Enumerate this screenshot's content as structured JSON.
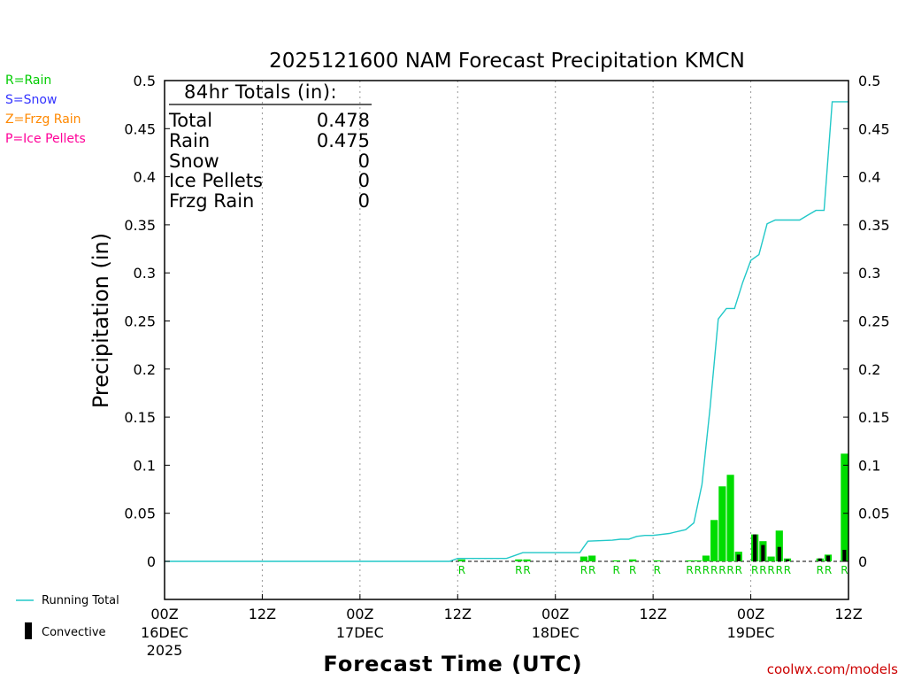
{
  "chart_data": {
    "type": "bar",
    "title": "2025121600 NAM Forecast Precipitation KMCN",
    "xlabel": "Forecast Time (UTC)",
    "ylabel": "Precipitation (in)",
    "credit": "coolwx.com/models",
    "ylim": [
      -0.04,
      0.5
    ],
    "xlim": [
      0,
      84
    ],
    "y_ticks": [
      "0",
      "0.05",
      "0.1",
      "0.15",
      "0.2",
      "0.25",
      "0.3",
      "0.35",
      "0.4",
      "0.45",
      "0.5"
    ],
    "y_tick_values": [
      0,
      0.05,
      0.1,
      0.15,
      0.2,
      0.25,
      0.3,
      0.35,
      0.4,
      0.45,
      0.5
    ],
    "x_ticks": [
      {
        "hour": 0,
        "line1": "00Z",
        "line2": "16DEC",
        "line3": "2025"
      },
      {
        "hour": 12,
        "line1": "12Z",
        "line2": "",
        "line3": ""
      },
      {
        "hour": 24,
        "line1": "00Z",
        "line2": "17DEC",
        "line3": ""
      },
      {
        "hour": 36,
        "line1": "12Z",
        "line2": "",
        "line3": ""
      },
      {
        "hour": 48,
        "line1": "00Z",
        "line2": "18DEC",
        "line3": ""
      },
      {
        "hour": 60,
        "line1": "12Z",
        "line2": "",
        "line3": ""
      },
      {
        "hour": 72,
        "line1": "00Z",
        "line2": "19DEC",
        "line3": ""
      },
      {
        "hour": 84,
        "line1": "12Z",
        "line2": "",
        "line3": ""
      }
    ],
    "totals_box": {
      "header": "84hr Totals (in):",
      "rows": [
        {
          "label": "Total",
          "value": "0.478"
        },
        {
          "label": "Rain",
          "value": "0.475"
        },
        {
          "label": "Snow",
          "value": "0"
        },
        {
          "label": "Ice Pellets",
          "value": "0"
        },
        {
          "label": "Frzg Rain",
          "value": "0"
        }
      ]
    },
    "ptype_legend": [
      {
        "text": "R=Rain",
        "color": "#00cc00"
      },
      {
        "text": "S=Snow",
        "color": "#3333ff"
      },
      {
        "text": "Z=Frzg Rain",
        "color": "#ff8800"
      },
      {
        "text": "P=Ice Pellets",
        "color": "#ff0099"
      }
    ],
    "series_legend": {
      "running_total": "Running Total",
      "convective": "Convective"
    },
    "colors": {
      "precip_bar": "#00dd00",
      "convective_bar": "#000000",
      "running_total": "#22c8c8",
      "rain_marker": "#00cc00"
    },
    "precip_bars": [
      {
        "hour": 36,
        "value": 0.002,
        "convective": 0,
        "ptype": "R"
      },
      {
        "hour": 43,
        "value": 0.002,
        "convective": 0,
        "ptype": "R"
      },
      {
        "hour": 44,
        "value": 0.002,
        "convective": 0,
        "ptype": "R"
      },
      {
        "hour": 51,
        "value": 0.005,
        "convective": 0,
        "ptype": "R"
      },
      {
        "hour": 52,
        "value": 0.006,
        "convective": 0,
        "ptype": "R"
      },
      {
        "hour": 55,
        "value": 0.001,
        "convective": 0,
        "ptype": "R"
      },
      {
        "hour": 57,
        "value": 0.002,
        "convective": 0,
        "ptype": "R"
      },
      {
        "hour": 60,
        "value": 0.001,
        "convective": 0,
        "ptype": "R"
      },
      {
        "hour": 64,
        "value": 0.001,
        "convective": 0,
        "ptype": "R"
      },
      {
        "hour": 65,
        "value": 0.001,
        "convective": 0,
        "ptype": "R"
      },
      {
        "hour": 66,
        "value": 0.006,
        "convective": 0,
        "ptype": "R"
      },
      {
        "hour": 67,
        "value": 0.043,
        "convective": 0,
        "ptype": "R"
      },
      {
        "hour": 68,
        "value": 0.078,
        "convective": 0,
        "ptype": "R"
      },
      {
        "hour": 69,
        "value": 0.09,
        "convective": 0,
        "ptype": "R"
      },
      {
        "hour": 70,
        "value": 0.01,
        "convective": 0.007,
        "ptype": "R"
      },
      {
        "hour": 72,
        "value": 0.028,
        "convective": 0.028,
        "ptype": "R"
      },
      {
        "hour": 73,
        "value": 0.021,
        "convective": 0.017,
        "ptype": "R"
      },
      {
        "hour": 74,
        "value": 0.005,
        "convective": 0,
        "ptype": "R"
      },
      {
        "hour": 75,
        "value": 0.032,
        "convective": 0.015,
        "ptype": "R"
      },
      {
        "hour": 76,
        "value": 0.003,
        "convective": 0.002,
        "ptype": "R"
      },
      {
        "hour": 80,
        "value": 0.003,
        "convective": 0.003,
        "ptype": "R"
      },
      {
        "hour": 81,
        "value": 0.007,
        "convective": 0.006,
        "ptype": "R"
      },
      {
        "hour": 83,
        "value": 0.112,
        "convective": 0.012,
        "ptype": "R"
      }
    ],
    "running_total": {
      "hours": [
        0,
        35,
        36,
        42,
        44,
        51,
        52,
        55,
        56,
        57,
        58,
        59,
        60,
        62,
        63,
        64,
        65,
        66,
        67,
        68,
        69,
        70,
        71,
        72,
        73,
        74,
        75,
        76,
        77,
        78,
        79,
        80,
        81,
        82,
        83,
        84
      ],
      "values": [
        0,
        0,
        0.003,
        0.003,
        0.009,
        0.009,
        0.021,
        0.022,
        0.023,
        0.023,
        0.026,
        0.027,
        0.027,
        0.029,
        0.031,
        0.033,
        0.04,
        0.08,
        0.16,
        0.252,
        0.263,
        0.263,
        0.29,
        0.313,
        0.319,
        0.351,
        0.355,
        0.355,
        0.355,
        0.355,
        0.36,
        0.365,
        0.365,
        0.478,
        0.478,
        0.478
      ]
    },
    "ptype_markers": [
      {
        "hour": 36,
        "text": "R"
      },
      {
        "hour": 43,
        "text": "R"
      },
      {
        "hour": 44,
        "text": "R"
      },
      {
        "hour": 51,
        "text": "R"
      },
      {
        "hour": 52,
        "text": "R"
      },
      {
        "hour": 55,
        "text": "R"
      },
      {
        "hour": 57,
        "text": "R"
      },
      {
        "hour": 60,
        "text": "R"
      },
      {
        "hour": 64,
        "text": "R"
      },
      {
        "hour": 65,
        "text": "R"
      },
      {
        "hour": 66,
        "text": "R"
      },
      {
        "hour": 67,
        "text": "R"
      },
      {
        "hour": 68,
        "text": "R"
      },
      {
        "hour": 69,
        "text": "R"
      },
      {
        "hour": 70,
        "text": "R"
      },
      {
        "hour": 72,
        "text": "R"
      },
      {
        "hour": 73,
        "text": "R"
      },
      {
        "hour": 74,
        "text": "R"
      },
      {
        "hour": 75,
        "text": "R"
      },
      {
        "hour": 76,
        "text": "R"
      },
      {
        "hour": 80,
        "text": "R"
      },
      {
        "hour": 81,
        "text": "R"
      },
      {
        "hour": 83,
        "text": "R"
      }
    ]
  }
}
